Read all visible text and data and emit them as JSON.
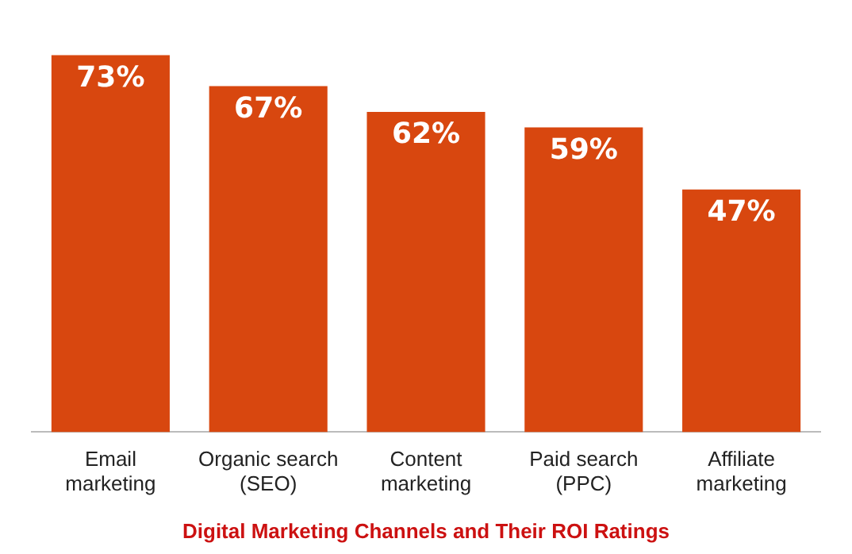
{
  "chart_data": {
    "type": "bar",
    "title": "Digital Marketing Channels and Their ROI Ratings",
    "categories": [
      "Email\nmarketing",
      "Organic search\n(SEO)",
      "Content\nmarketing",
      "Paid search\n(PPC)",
      "Affiliate\nmarketing"
    ],
    "values": [
      73,
      67,
      62,
      59,
      47
    ],
    "value_labels": [
      "73%",
      "67%",
      "62%",
      "59%",
      "47%"
    ],
    "color": "#d8470f",
    "grid": false,
    "legend": false
  }
}
